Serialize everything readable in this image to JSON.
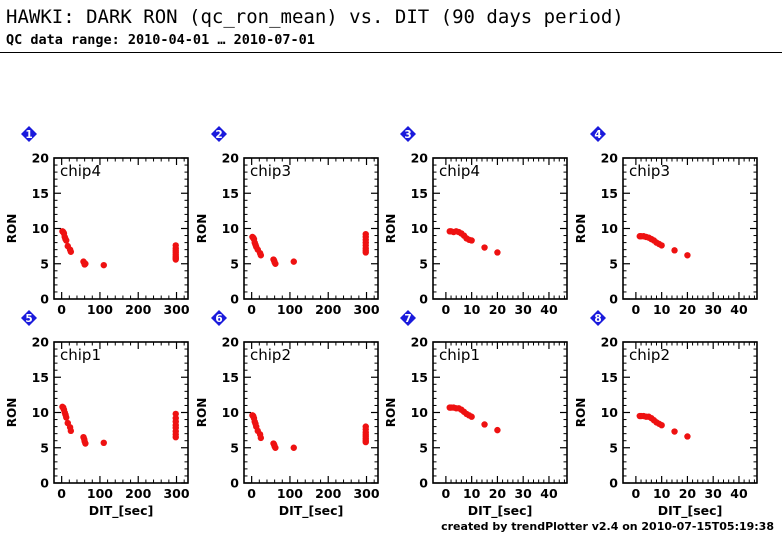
{
  "header": {
    "title": "HAWKI: DARK RON (qc_ron_mean) vs. DIT (90 days period)",
    "subtitle": "QC data range: 2010-04-01 … 2010-07-01"
  },
  "footer": {
    "credit": "created by trendPlotter v2.4 on 2010-07-15T05:19:38"
  },
  "colors": {
    "points": "#ee1111",
    "badge": "#1a1adc",
    "axis": "#000000"
  },
  "chart_data": [
    {
      "id": "1",
      "type": "scatter",
      "label": "chip4",
      "ylabel": "RON",
      "xlabel": "",
      "xlim": [
        -20,
        330
      ],
      "ylim": [
        0,
        20
      ],
      "xticks": [
        0,
        100,
        200,
        300
      ],
      "yticks": [
        0,
        5,
        10,
        15,
        20
      ],
      "points": [
        [
          2,
          9.6
        ],
        [
          4,
          9.5
        ],
        [
          6,
          9.3
        ],
        [
          8,
          8.8
        ],
        [
          10,
          8.5
        ],
        [
          12,
          8.3
        ],
        [
          16,
          7.5
        ],
        [
          22,
          7.0
        ],
        [
          24,
          6.7
        ],
        [
          57,
          5.3
        ],
        [
          59,
          5.1
        ],
        [
          60,
          4.9
        ],
        [
          62,
          5.0
        ],
        [
          110,
          4.8
        ],
        [
          298,
          7.6
        ],
        [
          298,
          7.2
        ],
        [
          298,
          6.9
        ],
        [
          298,
          6.6
        ],
        [
          298,
          6.3
        ],
        [
          298,
          6.0
        ],
        [
          298,
          5.8
        ],
        [
          298,
          5.6
        ]
      ]
    },
    {
      "id": "2",
      "type": "scatter",
      "label": "chip3",
      "ylabel": "RON",
      "xlabel": "",
      "xlim": [
        -20,
        330
      ],
      "ylim": [
        0,
        20
      ],
      "xticks": [
        0,
        100,
        200,
        300
      ],
      "yticks": [
        0,
        5,
        10,
        15,
        20
      ],
      "points": [
        [
          2,
          8.8
        ],
        [
          4,
          8.7
        ],
        [
          6,
          8.5
        ],
        [
          8,
          8.0
        ],
        [
          10,
          7.7
        ],
        [
          12,
          7.4
        ],
        [
          16,
          7.0
        ],
        [
          22,
          6.5
        ],
        [
          24,
          6.2
        ],
        [
          57,
          5.6
        ],
        [
          59,
          5.4
        ],
        [
          60,
          5.2
        ],
        [
          62,
          5.0
        ],
        [
          110,
          5.3
        ],
        [
          298,
          9.2
        ],
        [
          298,
          8.8
        ],
        [
          298,
          8.4
        ],
        [
          298,
          8.0
        ],
        [
          298,
          7.6
        ],
        [
          298,
          7.2
        ],
        [
          298,
          6.9
        ],
        [
          298,
          6.6
        ]
      ]
    },
    {
      "id": "3",
      "type": "scatter",
      "label": "chip4",
      "ylabel": "RON",
      "xlabel": "",
      "xlim": [
        -5,
        47
      ],
      "ylim": [
        0,
        20
      ],
      "xticks": [
        0,
        10,
        20,
        30,
        40
      ],
      "yticks": [
        0,
        5,
        10,
        15,
        20
      ],
      "points": [
        [
          1.5,
          9.6
        ],
        [
          2,
          9.6
        ],
        [
          3,
          9.5
        ],
        [
          4,
          9.6
        ],
        [
          5,
          9.5
        ],
        [
          6,
          9.3
        ],
        [
          7,
          9.0
        ],
        [
          8,
          8.6
        ],
        [
          9,
          8.4
        ],
        [
          10,
          8.3
        ],
        [
          15,
          7.3
        ],
        [
          20,
          6.6
        ]
      ]
    },
    {
      "id": "4",
      "type": "scatter",
      "label": "chip3",
      "ylabel": "RON",
      "xlabel": "",
      "xlim": [
        -5,
        47
      ],
      "ylim": [
        0,
        20
      ],
      "xticks": [
        0,
        10,
        20,
        30,
        40
      ],
      "yticks": [
        0,
        5,
        10,
        15,
        20
      ],
      "points": [
        [
          1.5,
          8.9
        ],
        [
          2,
          8.9
        ],
        [
          3,
          8.9
        ],
        [
          4,
          8.8
        ],
        [
          5,
          8.7
        ],
        [
          6,
          8.5
        ],
        [
          7,
          8.3
        ],
        [
          8,
          8.0
        ],
        [
          9,
          7.8
        ],
        [
          10,
          7.6
        ],
        [
          15,
          6.9
        ],
        [
          20,
          6.2
        ]
      ]
    },
    {
      "id": "5",
      "type": "scatter",
      "label": "chip1",
      "ylabel": "RON",
      "xlabel": "DIT_[sec]",
      "xlim": [
        -20,
        330
      ],
      "ylim": [
        0,
        20
      ],
      "xticks": [
        0,
        100,
        200,
        300
      ],
      "yticks": [
        0,
        5,
        10,
        15,
        20
      ],
      "points": [
        [
          2,
          10.8
        ],
        [
          4,
          10.7
        ],
        [
          6,
          10.4
        ],
        [
          8,
          10.0
        ],
        [
          10,
          9.7
        ],
        [
          12,
          9.3
        ],
        [
          16,
          8.5
        ],
        [
          22,
          7.9
        ],
        [
          24,
          7.4
        ],
        [
          57,
          6.5
        ],
        [
          59,
          6.2
        ],
        [
          60,
          5.9
        ],
        [
          62,
          5.6
        ],
        [
          110,
          5.7
        ],
        [
          298,
          9.8
        ],
        [
          298,
          9.2
        ],
        [
          298,
          8.7
        ],
        [
          298,
          8.2
        ],
        [
          298,
          7.8
        ],
        [
          298,
          7.3
        ],
        [
          298,
          6.9
        ],
        [
          298,
          6.5
        ]
      ]
    },
    {
      "id": "6",
      "type": "scatter",
      "label": "chip2",
      "ylabel": "RON",
      "xlabel": "DIT_[sec]",
      "xlim": [
        -20,
        330
      ],
      "ylim": [
        0,
        20
      ],
      "xticks": [
        0,
        100,
        200,
        300
      ],
      "yticks": [
        0,
        5,
        10,
        15,
        20
      ],
      "points": [
        [
          2,
          9.6
        ],
        [
          4,
          9.5
        ],
        [
          6,
          9.2
        ],
        [
          8,
          8.7
        ],
        [
          10,
          8.4
        ],
        [
          12,
          8.0
        ],
        [
          16,
          7.4
        ],
        [
          22,
          6.9
        ],
        [
          24,
          6.4
        ],
        [
          57,
          5.6
        ],
        [
          59,
          5.4
        ],
        [
          60,
          5.2
        ],
        [
          62,
          5.0
        ],
        [
          110,
          5.0
        ],
        [
          298,
          8.0
        ],
        [
          298,
          7.6
        ],
        [
          298,
          7.2
        ],
        [
          298,
          6.9
        ],
        [
          298,
          6.6
        ],
        [
          298,
          6.3
        ],
        [
          298,
          6.0
        ],
        [
          298,
          5.8
        ]
      ]
    },
    {
      "id": "7",
      "type": "scatter",
      "label": "chip1",
      "ylabel": "RON",
      "xlabel": "DIT_[sec]",
      "xlim": [
        -5,
        47
      ],
      "ylim": [
        0,
        20
      ],
      "xticks": [
        0,
        10,
        20,
        30,
        40
      ],
      "yticks": [
        0,
        5,
        10,
        15,
        20
      ],
      "points": [
        [
          1.5,
          10.7
        ],
        [
          2,
          10.7
        ],
        [
          3,
          10.7
        ],
        [
          4,
          10.6
        ],
        [
          5,
          10.6
        ],
        [
          6,
          10.4
        ],
        [
          7,
          10.1
        ],
        [
          8,
          9.8
        ],
        [
          9,
          9.6
        ],
        [
          10,
          9.4
        ],
        [
          15,
          8.3
        ],
        [
          20,
          7.5
        ]
      ]
    },
    {
      "id": "8",
      "type": "scatter",
      "label": "chip2",
      "ylabel": "RON",
      "xlabel": "DIT_[sec]",
      "xlim": [
        -5,
        47
      ],
      "ylim": [
        0,
        20
      ],
      "xticks": [
        0,
        10,
        20,
        30,
        40
      ],
      "yticks": [
        0,
        5,
        10,
        15,
        20
      ],
      "points": [
        [
          1.5,
          9.5
        ],
        [
          2,
          9.5
        ],
        [
          3,
          9.5
        ],
        [
          4,
          9.4
        ],
        [
          5,
          9.4
        ],
        [
          6,
          9.2
        ],
        [
          7,
          8.9
        ],
        [
          8,
          8.6
        ],
        [
          9,
          8.4
        ],
        [
          10,
          8.2
        ],
        [
          15,
          7.3
        ],
        [
          20,
          6.6
        ]
      ]
    }
  ]
}
